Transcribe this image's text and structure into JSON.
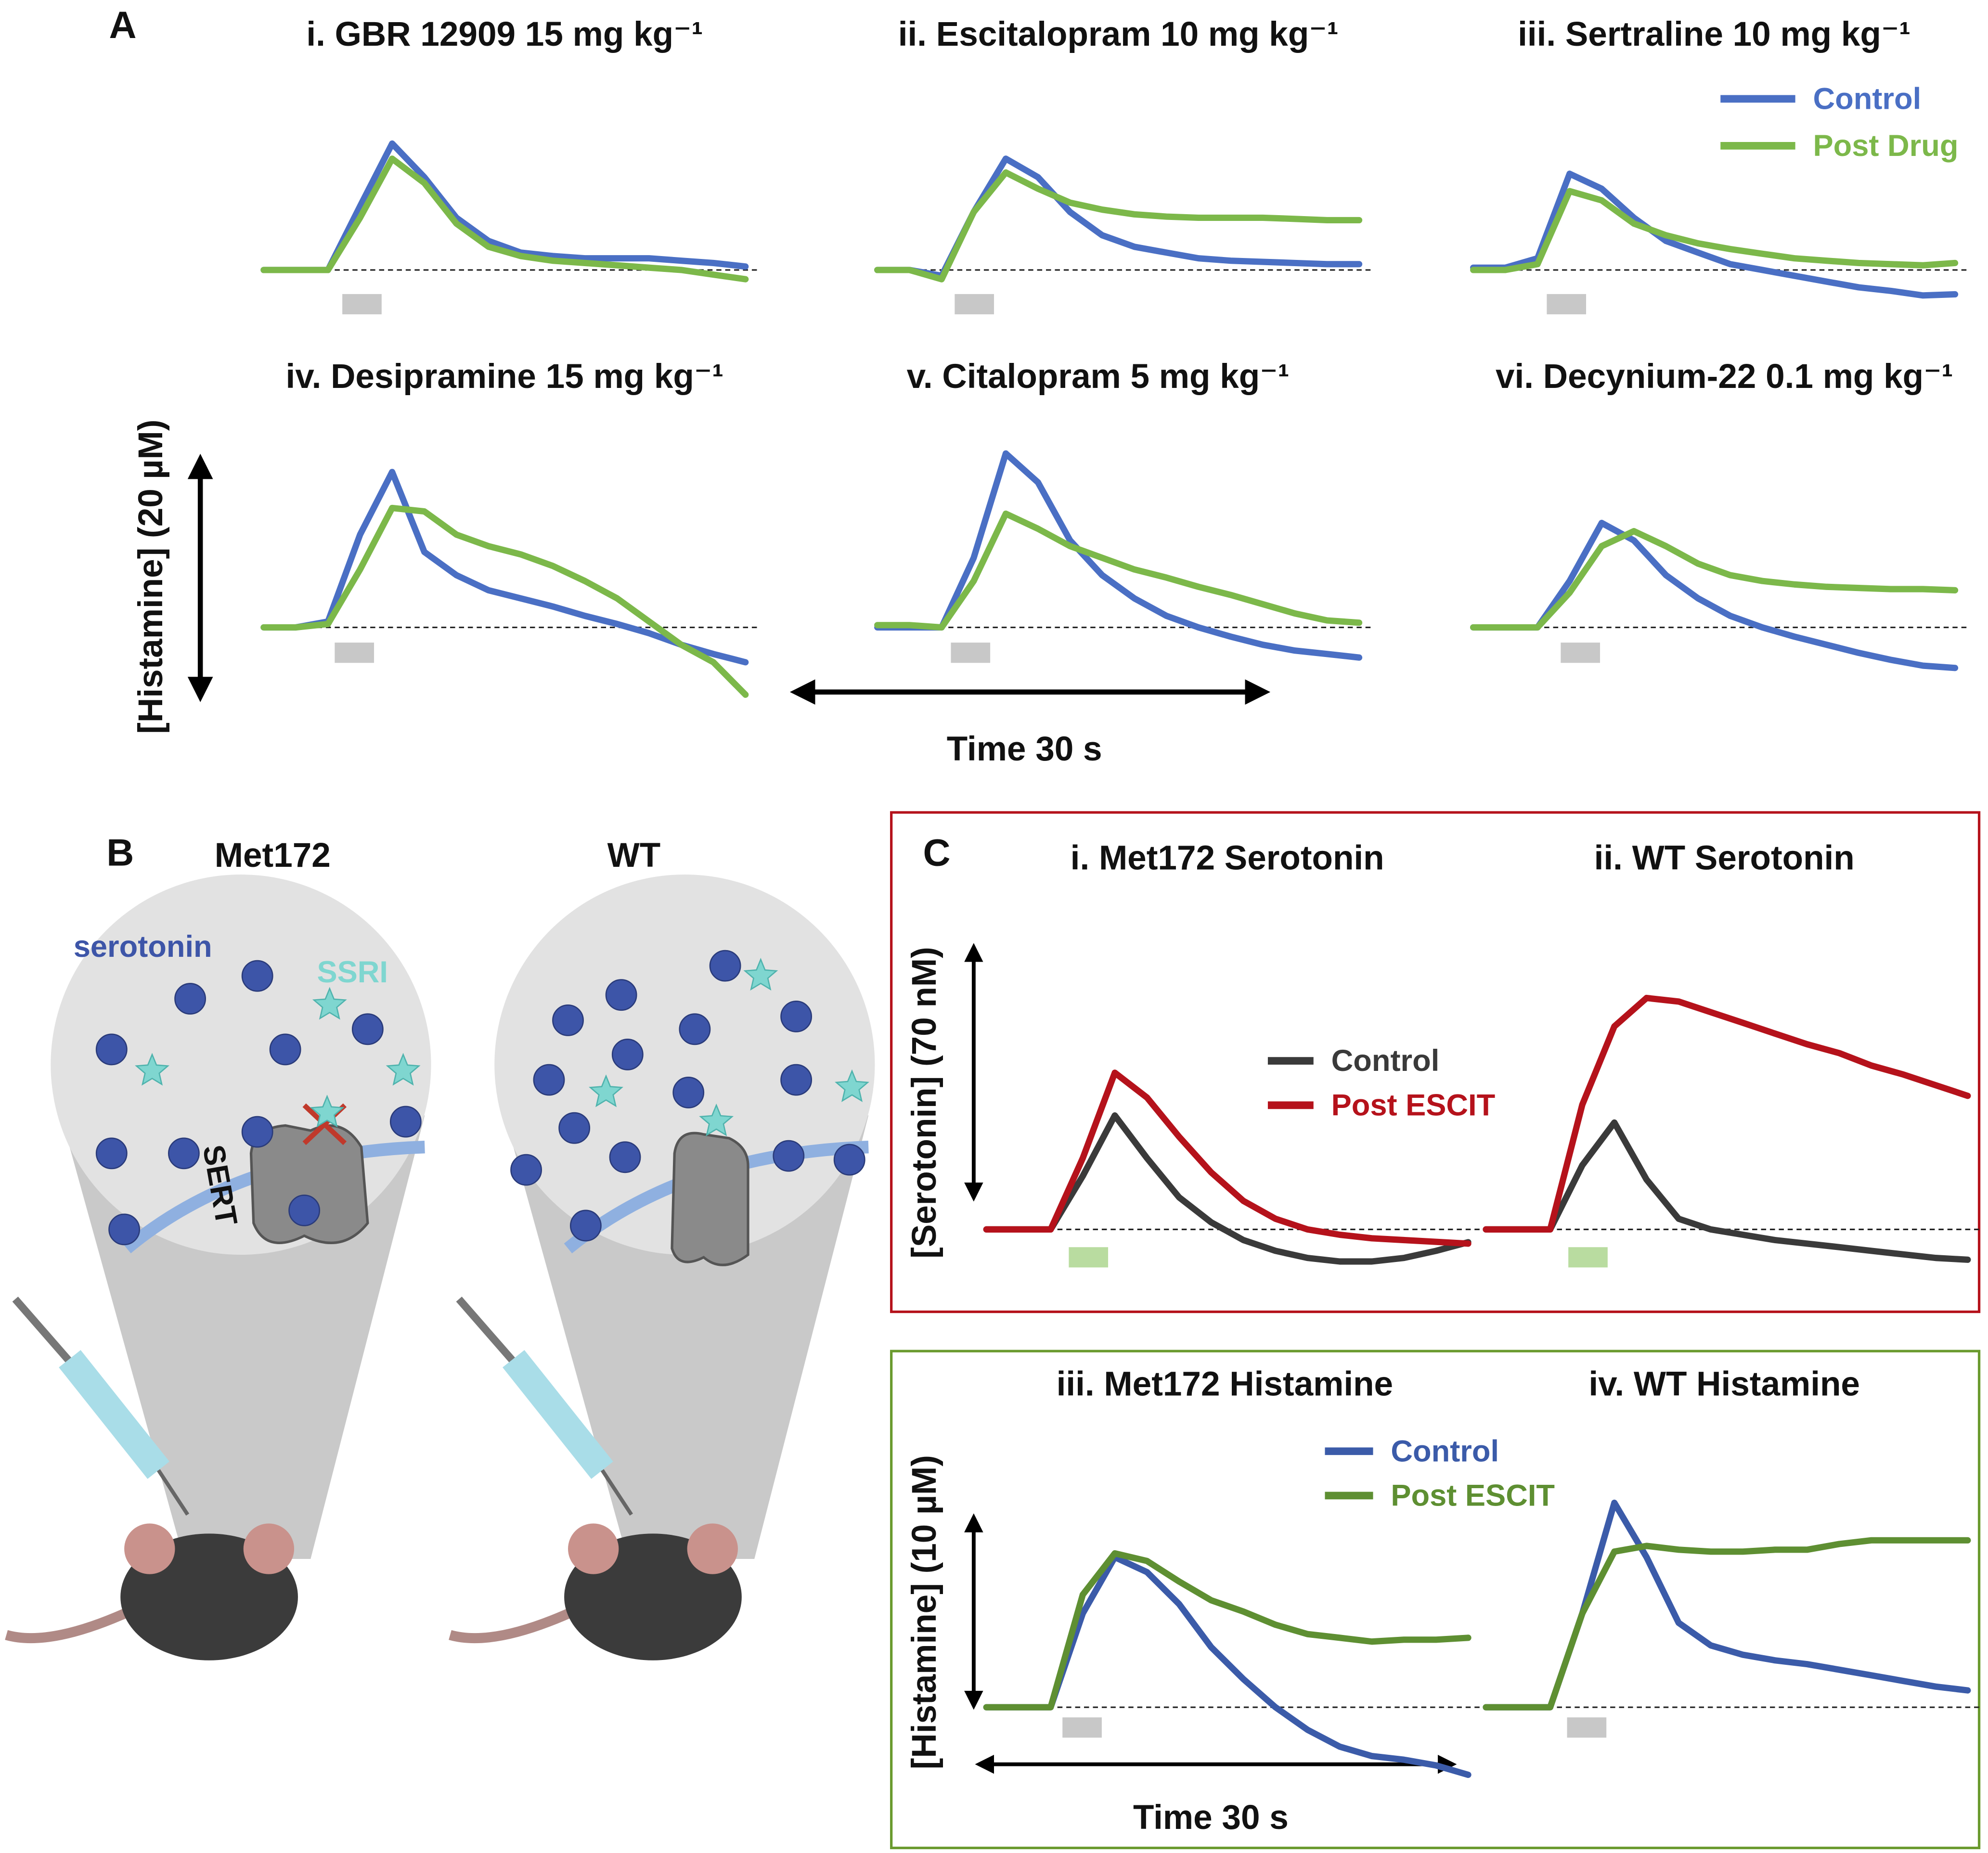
{
  "panel_labels": [
    "A",
    "B",
    "C"
  ],
  "scale_bars": {
    "a_y": "[Histamine] (20 µM)",
    "a_x": "Time 30 s",
    "c_serotonin_y": "[Serotonin] (70 nM)",
    "c_histamine_y": "[Histamine] (10 µM)",
    "c_x": "Time 30 s"
  },
  "diagram": {
    "left_title": "Met172",
    "right_title": "WT",
    "serotonin": "serotonin",
    "ssri": "SSRI",
    "sert": "SERT"
  },
  "chart_data": [
    {
      "type": "line",
      "title": "i. GBR 12909 15 mg kg⁻¹",
      "x": [
        0,
        2,
        4,
        6,
        8,
        10,
        12,
        14,
        16,
        18,
        20,
        22,
        24,
        26,
        28,
        30
      ],
      "series": [
        {
          "name": "Control",
          "color": "#4a6fc4",
          "values": [
            0,
            0,
            0,
            5.5,
            10.9,
            8,
            4.5,
            2.5,
            1.5,
            1.2,
            1,
            1,
            1,
            0.8,
            0.6,
            0.3
          ]
        },
        {
          "name": "Post Drug",
          "color": "#7cb84a",
          "values": [
            0,
            0,
            0,
            4.5,
            9.6,
            7.5,
            4,
            2,
            1.2,
            0.8,
            0.6,
            0.4,
            0.2,
            0,
            -0.4,
            -0.8
          ]
        }
      ]
    },
    {
      "type": "line",
      "title": "ii. Escitalopram 10 mg kg⁻¹",
      "x": [
        0,
        2,
        4,
        6,
        8,
        10,
        12,
        14,
        16,
        18,
        20,
        22,
        24,
        26,
        28,
        30
      ],
      "series": [
        {
          "name": "Control",
          "color": "#4a6fc4",
          "values": [
            0,
            0,
            -0.5,
            5,
            9.6,
            8,
            5,
            3,
            2,
            1.5,
            1,
            0.8,
            0.7,
            0.6,
            0.5,
            0.5
          ]
        },
        {
          "name": "Post Drug",
          "color": "#7cb84a",
          "values": [
            0,
            0,
            -0.8,
            5,
            8.4,
            7,
            5.8,
            5.2,
            4.8,
            4.6,
            4.5,
            4.5,
            4.5,
            4.4,
            4.3,
            4.3
          ]
        }
      ]
    },
    {
      "type": "line",
      "title": "iii. Sertraline 10 mg kg⁻¹",
      "x": [
        0,
        2,
        4,
        6,
        8,
        10,
        12,
        14,
        16,
        18,
        20,
        22,
        24,
        26,
        28,
        30
      ],
      "series": [
        {
          "name": "Control",
          "color": "#4a6fc4",
          "values": [
            0.2,
            0.2,
            1,
            8.3,
            7,
            4.5,
            2.5,
            1.5,
            0.5,
            0,
            -0.5,
            -1,
            -1.5,
            -1.8,
            -2.2,
            -2.1
          ]
        },
        {
          "name": "Post Drug",
          "color": "#7cb84a",
          "values": [
            0,
            0,
            0.5,
            6.8,
            6,
            4,
            3,
            2.3,
            1.8,
            1.4,
            1,
            0.8,
            0.6,
            0.5,
            0.4,
            0.6
          ]
        }
      ]
    },
    {
      "type": "line",
      "title": "iv. Desipramine 15 mg kg⁻¹",
      "x": [
        0,
        2,
        4,
        6,
        8,
        10,
        12,
        14,
        16,
        18,
        20,
        22,
        24,
        26,
        28,
        30
      ],
      "series": [
        {
          "name": "Control",
          "color": "#4a6fc4",
          "values": [
            0,
            0,
            0.5,
            8,
            13.4,
            6.5,
            4.5,
            3.2,
            2.5,
            1.8,
            1,
            0.3,
            -0.5,
            -1.5,
            -2.3,
            -3
          ]
        },
        {
          "name": "Post Drug",
          "color": "#7cb84a",
          "values": [
            0,
            0,
            0.3,
            5,
            10.3,
            10,
            8,
            7,
            6.3,
            5.3,
            4,
            2.5,
            0.5,
            -1.5,
            -3,
            -5.8
          ]
        }
      ]
    },
    {
      "type": "line",
      "title": "v. Citalopram 5 mg kg⁻¹",
      "x": [
        0,
        2,
        4,
        6,
        8,
        10,
        12,
        14,
        16,
        18,
        20,
        22,
        24,
        26,
        28,
        30
      ],
      "series": [
        {
          "name": "Control",
          "color": "#4a6fc4",
          "values": [
            0,
            0,
            0,
            6,
            15,
            12.5,
            7.5,
            4.5,
            2.5,
            1,
            0,
            -0.8,
            -1.5,
            -2,
            -2.3,
            -2.6
          ]
        },
        {
          "name": "Post Drug",
          "color": "#7cb84a",
          "values": [
            0.2,
            0.2,
            0,
            4,
            9.8,
            8.5,
            7,
            6,
            5,
            4.3,
            3.5,
            2.8,
            2,
            1.2,
            0.6,
            0.4
          ]
        }
      ]
    },
    {
      "type": "line",
      "title": "vi. Decynium-22 0.1 mg kg⁻¹",
      "x": [
        0,
        2,
        4,
        6,
        8,
        10,
        12,
        14,
        16,
        18,
        20,
        22,
        24,
        26,
        28,
        30
      ],
      "series": [
        {
          "name": "Control",
          "color": "#4a6fc4",
          "values": [
            0,
            0,
            0,
            4,
            9,
            7.5,
            4.5,
            2.5,
            1,
            0,
            -0.8,
            -1.5,
            -2.2,
            -2.8,
            -3.3,
            -3.5
          ]
        },
        {
          "name": "Post Drug",
          "color": "#7cb84a",
          "values": [
            0,
            0,
            0,
            3,
            7,
            8.3,
            7,
            5.5,
            4.5,
            4,
            3.7,
            3.5,
            3.4,
            3.3,
            3.3,
            3.2
          ]
        }
      ]
    },
    {
      "type": "line",
      "title": "i. Met172 Serotonin",
      "x": [
        0,
        2,
        4,
        6,
        8,
        10,
        12,
        14,
        16,
        18,
        20,
        22,
        24,
        26,
        28,
        30
      ],
      "series": [
        {
          "name": "Control",
          "color": "#3a3a3a",
          "values": [
            0,
            0,
            0,
            15,
            32,
            20,
            9,
            2,
            -3,
            -6,
            -8,
            -9,
            -9,
            -8,
            -6,
            -3.6
          ]
        },
        {
          "name": "Post ESCIT",
          "color": "#b5121b",
          "values": [
            0,
            0,
            0,
            20,
            44,
            37,
            26,
            16,
            8,
            3,
            0,
            -1.5,
            -2.5,
            -3,
            -3.5,
            -4
          ]
        }
      ]
    },
    {
      "type": "line",
      "title": "ii. WT Serotonin",
      "x": [
        0,
        2,
        4,
        6,
        8,
        10,
        12,
        14,
        16,
        18,
        20,
        22,
        24,
        26,
        28,
        30
      ],
      "series": [
        {
          "name": "Control",
          "color": "#3a3a3a",
          "values": [
            0,
            0,
            0,
            18,
            30,
            14,
            3,
            0,
            -1.5,
            -3,
            -4,
            -5,
            -6,
            -7,
            -8,
            -8.5
          ]
        },
        {
          "name": "Post ESCIT",
          "color": "#b5121b",
          "values": [
            0,
            0,
            0,
            35,
            57,
            65,
            64,
            61,
            58,
            55,
            52,
            49.5,
            46,
            43.5,
            40.5,
            37.5
          ]
        }
      ]
    },
    {
      "type": "line",
      "title": "iii. Met172 Histamine",
      "x": [
        0,
        2,
        4,
        6,
        8,
        10,
        12,
        14,
        16,
        18,
        20,
        22,
        24,
        26,
        28,
        30
      ],
      "series": [
        {
          "name": "Control",
          "color": "#3b5ba9",
          "values": [
            0,
            0,
            0,
            5,
            8,
            7.2,
            5.5,
            3.2,
            1.5,
            0,
            -1.2,
            -2.1,
            -2.6,
            -2.8,
            -3.1,
            -3.6
          ]
        },
        {
          "name": "Post ESCIT",
          "color": "#5e8f32",
          "values": [
            0,
            0,
            0,
            6,
            8.2,
            7.8,
            6.7,
            5.7,
            5.1,
            4.4,
            3.9,
            3.7,
            3.5,
            3.6,
            3.6,
            3.7
          ]
        }
      ]
    },
    {
      "type": "line",
      "title": "iv. WT Histamine",
      "x": [
        0,
        2,
        4,
        6,
        8,
        10,
        12,
        14,
        16,
        18,
        20,
        22,
        24,
        26,
        28,
        30
      ],
      "series": [
        {
          "name": "Control",
          "color": "#3b5ba9",
          "values": [
            0,
            0,
            0,
            5,
            10.9,
            8,
            4.5,
            3.3,
            2.8,
            2.5,
            2.3,
            2,
            1.7,
            1.4,
            1.1,
            0.9
          ]
        },
        {
          "name": "Post ESCIT",
          "color": "#5e8f32",
          "values": [
            0,
            0,
            0,
            5,
            8.3,
            8.6,
            8.4,
            8.3,
            8.3,
            8.4,
            8.4,
            8.7,
            8.9,
            8.9,
            8.9,
            8.9
          ]
        }
      ]
    }
  ]
}
